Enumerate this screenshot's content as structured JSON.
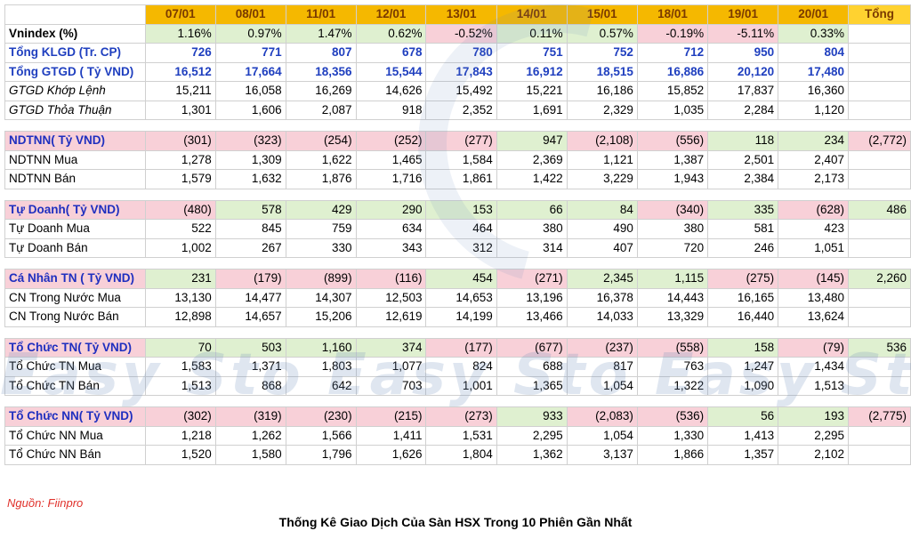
{
  "header": {
    "dates": [
      "07/01",
      "08/01",
      "11/01",
      "12/01",
      "13/01",
      "14/01",
      "15/01",
      "18/01",
      "19/01",
      "20/01"
    ],
    "total_label": "Tổng"
  },
  "summary": {
    "vnindex": {
      "label": "Vnindex (%)",
      "values": [
        "1.16%",
        "0.97%",
        "1.47%",
        "0.62%",
        "-0.52%",
        "0.11%",
        "0.57%",
        "-0.19%",
        "-5.11%",
        "0.33%"
      ],
      "signs": [
        "+",
        "+",
        "+",
        "+",
        "-",
        "+",
        "+",
        "-",
        "-",
        "+"
      ]
    },
    "klgd": {
      "label": "Tổng KLGD (Tr. CP)",
      "values": [
        "726",
        "771",
        "807",
        "678",
        "780",
        "751",
        "752",
        "712",
        "950",
        "804"
      ]
    },
    "gtgd": {
      "label": "Tổng GTGD ( Tỷ VND)",
      "values": [
        "16,512",
        "17,664",
        "18,356",
        "15,544",
        "17,843",
        "16,912",
        "18,515",
        "16,886",
        "20,120",
        "17,480"
      ]
    },
    "khop_lenh": {
      "label": "GTGD Khớp Lệnh",
      "values": [
        "15,211",
        "16,058",
        "16,269",
        "14,626",
        "15,492",
        "15,221",
        "16,186",
        "15,852",
        "17,837",
        "16,360"
      ]
    },
    "thoa_thuan": {
      "label": "GTGD Thỏa Thuận",
      "values": [
        "1,301",
        "1,606",
        "2,087",
        "918",
        "2,352",
        "1,691",
        "2,329",
        "1,035",
        "2,284",
        "1,120"
      ]
    }
  },
  "sections": [
    {
      "label": "NDTNN( Tỷ VND)",
      "values": [
        "(301)",
        "(323)",
        "(254)",
        "(252)",
        "(277)",
        "947",
        "(2,108)",
        "(556)",
        "118",
        "234"
      ],
      "signs": [
        "-",
        "-",
        "-",
        "-",
        "-",
        "+",
        "-",
        "-",
        "+",
        "+"
      ],
      "total": "(2,772)",
      "total_sign": "-",
      "rows": [
        {
          "label": "NDTNN Mua",
          "values": [
            "1,278",
            "1,309",
            "1,622",
            "1,465",
            "1,584",
            "2,369",
            "1,121",
            "1,387",
            "2,501",
            "2,407"
          ]
        },
        {
          "label": "NDTNN Bán",
          "values": [
            "1,579",
            "1,632",
            "1,876",
            "1,716",
            "1,861",
            "1,422",
            "3,229",
            "1,943",
            "2,384",
            "2,173"
          ]
        }
      ]
    },
    {
      "label": "Tự Doanh( Tỷ VND)",
      "values": [
        "(480)",
        "578",
        "429",
        "290",
        "153",
        "66",
        "84",
        "(340)",
        "335",
        "(628)"
      ],
      "signs": [
        "-",
        "+",
        "+",
        "+",
        "+",
        "+",
        "+",
        "-",
        "+",
        "-"
      ],
      "total": "486",
      "total_sign": "+",
      "rows": [
        {
          "label": "Tự Doanh Mua",
          "values": [
            "522",
            "845",
            "759",
            "634",
            "464",
            "380",
            "490",
            "380",
            "581",
            "423"
          ]
        },
        {
          "label": "Tự Doanh Bán",
          "values": [
            "1,002",
            "267",
            "330",
            "343",
            "312",
            "314",
            "407",
            "720",
            "246",
            "1,051"
          ]
        }
      ]
    },
    {
      "label": "Cá Nhân TN ( Tỷ VND)",
      "values": [
        "231",
        "(179)",
        "(899)",
        "(116)",
        "454",
        "(271)",
        "2,345",
        "1,115",
        "(275)",
        "(145)"
      ],
      "signs": [
        "+",
        "-",
        "-",
        "-",
        "+",
        "-",
        "+",
        "+",
        "-",
        "-"
      ],
      "total": "2,260",
      "total_sign": "+",
      "rows": [
        {
          "label": "CN Trong Nước Mua",
          "values": [
            "13,130",
            "14,477",
            "14,307",
            "12,503",
            "14,653",
            "13,196",
            "16,378",
            "14,443",
            "16,165",
            "13,480"
          ]
        },
        {
          "label": "CN Trong Nước Bán",
          "values": [
            "12,898",
            "14,657",
            "15,206",
            "12,619",
            "14,199",
            "13,466",
            "14,033",
            "13,329",
            "16,440",
            "13,624"
          ]
        }
      ]
    },
    {
      "label": "Tổ Chức TN( Tỷ VND)",
      "values": [
        "70",
        "503",
        "1,160",
        "374",
        "(177)",
        "(677)",
        "(237)",
        "(558)",
        "158",
        "(79)"
      ],
      "signs": [
        "+",
        "+",
        "+",
        "+",
        "-",
        "-",
        "-",
        "-",
        "+",
        "-"
      ],
      "total": "536",
      "total_sign": "+",
      "rows": [
        {
          "label": "Tổ Chức TN Mua",
          "values": [
            "1,583",
            "1,371",
            "1,803",
            "1,077",
            "824",
            "688",
            "817",
            "763",
            "1,247",
            "1,434"
          ]
        },
        {
          "label": "Tổ Chức TN Bán",
          "values": [
            "1,513",
            "868",
            "642",
            "703",
            "1,001",
            "1,365",
            "1,054",
            "1,322",
            "1,090",
            "1,513"
          ]
        }
      ]
    },
    {
      "label": "Tổ Chức NN( Tỷ VND)",
      "values": [
        "(302)",
        "(319)",
        "(230)",
        "(215)",
        "(273)",
        "933",
        "(2,083)",
        "(536)",
        "56",
        "193"
      ],
      "signs": [
        "-",
        "-",
        "-",
        "-",
        "-",
        "+",
        "-",
        "-",
        "+",
        "+"
      ],
      "total": "(2,775)",
      "total_sign": "-",
      "rows": [
        {
          "label": "Tổ Chức NN Mua",
          "values": [
            "1,218",
            "1,262",
            "1,566",
            "1,411",
            "1,531",
            "2,295",
            "1,054",
            "1,330",
            "1,413",
            "2,295"
          ]
        },
        {
          "label": "Tổ Chức NN Bán",
          "values": [
            "1,520",
            "1,580",
            "1,796",
            "1,626",
            "1,804",
            "1,362",
            "3,137",
            "1,866",
            "1,357",
            "2,102"
          ]
        }
      ]
    }
  ],
  "watermark": "Easy Sto Easy Sto Easy Sto",
  "source": "Nguồn: Fiinpro",
  "caption": "Thống Kê Giao Dịch Của Sàn HSX Trong 10 Phiên Gần Nhất",
  "colors": {
    "header": "#f5b800",
    "positive": "#dff0d0",
    "negative": "#f8d0d8",
    "label_blue": "#1f3fbf",
    "source_red": "#e0312b"
  }
}
